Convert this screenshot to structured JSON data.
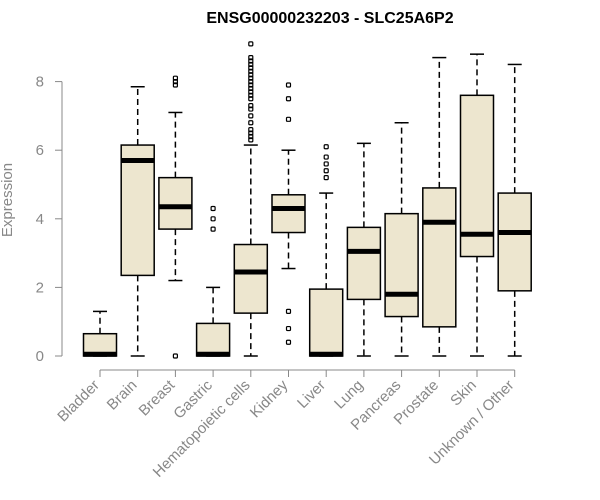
{
  "chart_data": {
    "type": "boxplot",
    "title": "ENSG00000232203 - SLC25A6P2",
    "xlabel": "",
    "ylabel": "Expression",
    "ylim": [
      0,
      9.2
    ],
    "yticks": [
      0,
      2,
      4,
      6,
      8
    ],
    "categories": [
      "Bladder",
      "Brain",
      "Breast",
      "Gastric",
      "Hematopoietic cells",
      "Kidney",
      "Liver",
      "Lung",
      "Pancreas",
      "Prostate",
      "Skin",
      "Unknown / Other"
    ],
    "boxes": [
      {
        "name": "Bladder",
        "min": 0,
        "q1": 0,
        "median": 0.05,
        "q3": 0.65,
        "max": 1.3,
        "outliers": []
      },
      {
        "name": "Brain",
        "min": 0,
        "q1": 2.35,
        "median": 5.7,
        "q3": 6.15,
        "max": 7.85,
        "outliers": []
      },
      {
        "name": "Breast",
        "min": 2.2,
        "q1": 3.7,
        "median": 4.35,
        "q3": 5.2,
        "max": 7.1,
        "outliers": [
          0.0,
          7.9,
          8.0,
          8.1
        ]
      },
      {
        "name": "Gastric",
        "min": 0,
        "q1": 0,
        "median": 0.05,
        "q3": 0.95,
        "max": 2.0,
        "outliers": [
          3.7,
          4.0,
          4.3
        ]
      },
      {
        "name": "Hematopoietic cells",
        "min": 0,
        "q1": 1.25,
        "median": 2.45,
        "q3": 3.25,
        "max": 6.15,
        "outliers": [
          6.3,
          6.4,
          6.5,
          6.6,
          6.8,
          7.0,
          7.2,
          7.3,
          7.5,
          7.6,
          7.7,
          7.8,
          7.9,
          8.0,
          8.1,
          8.2,
          8.3,
          8.4,
          8.5,
          8.6,
          8.7,
          9.1
        ]
      },
      {
        "name": "Kidney",
        "min": 2.55,
        "q1": 3.6,
        "median": 4.3,
        "q3": 4.7,
        "max": 6.0,
        "outliers": [
          0.4,
          0.8,
          1.3,
          6.9,
          7.5,
          7.9
        ]
      },
      {
        "name": "Liver",
        "min": 0,
        "q1": 0,
        "median": 0.05,
        "q3": 1.95,
        "max": 4.75,
        "outliers": [
          5.2,
          5.4,
          5.6,
          5.8,
          6.1
        ]
      },
      {
        "name": "Lung",
        "min": 0,
        "q1": 1.65,
        "median": 3.05,
        "q3": 3.75,
        "max": 6.2,
        "outliers": []
      },
      {
        "name": "Pancreas",
        "min": 0,
        "q1": 1.15,
        "median": 1.8,
        "q3": 4.15,
        "max": 6.8,
        "outliers": []
      },
      {
        "name": "Prostate",
        "min": 0,
        "q1": 0.85,
        "median": 3.9,
        "q3": 4.9,
        "max": 8.7,
        "outliers": []
      },
      {
        "name": "Skin",
        "min": 0,
        "q1": 2.9,
        "median": 3.55,
        "q3": 7.6,
        "max": 8.8,
        "outliers": []
      },
      {
        "name": "Unknown / Other",
        "min": 0,
        "q1": 1.9,
        "median": 3.6,
        "q3": 4.75,
        "max": 8.5,
        "outliers": []
      }
    ],
    "colors": {
      "box_fill": "#ede6cf",
      "axis": "#888888"
    }
  }
}
